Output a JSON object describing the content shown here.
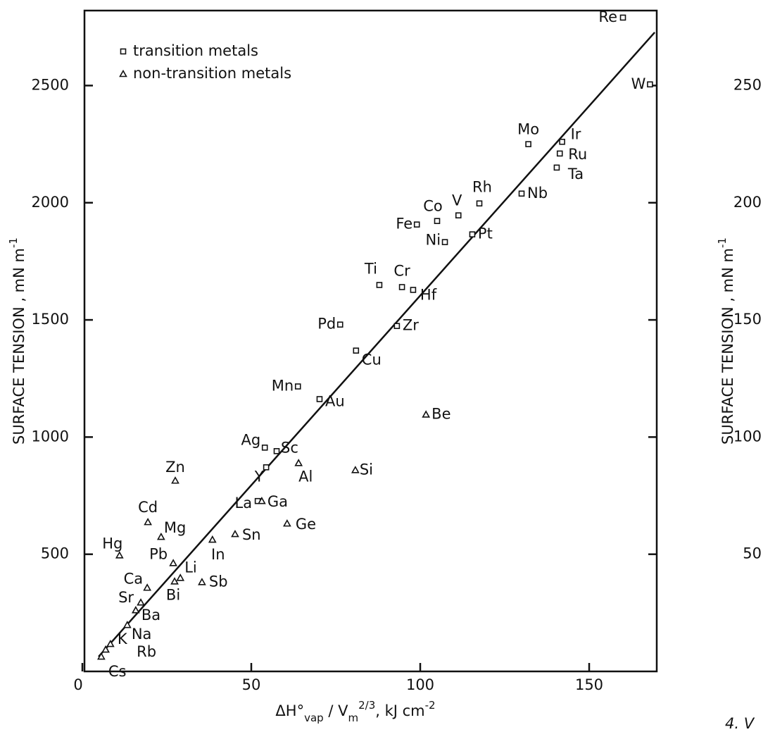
{
  "chart_data": {
    "type": "scatter",
    "x_label_parts": [
      "ΔH°",
      "vap",
      " / V",
      "m",
      "2/3",
      ", kJ cm",
      "-2"
    ],
    "y_label_parts": [
      "SURFACE TENSION , mN m",
      "-1"
    ],
    "y2_label_parts": [
      "SURFACE TENSION , mN m",
      "-1"
    ],
    "xlim": [
      0,
      170
    ],
    "ylim": [
      0,
      2820
    ],
    "y2lim": [
      0,
      282
    ],
    "xticks": [
      0,
      50,
      100,
      150
    ],
    "yticks": [
      500,
      1000,
      1500,
      2000,
      2500
    ],
    "y2ticks": [
      50,
      100,
      150,
      200,
      250
    ],
    "legend": "upper left",
    "series": [
      {
        "name": "transition metals",
        "marker": "square",
        "color": "#111111",
        "labels": [
          "Re",
          "W",
          "Mo",
          "Ir",
          "Ru",
          "Ta",
          "Nb",
          "Rh",
          "V",
          "Co",
          "Fe",
          "Ni",
          "Pt",
          "Ti",
          "Cr",
          "Hf",
          "Pd",
          "Zr",
          "Cu",
          "Mn",
          "Au",
          "Ag",
          "Sc",
          "Y",
          "La"
        ],
        "x": [
          160,
          168,
          132,
          142,
          141.3,
          140.4,
          130,
          117.5,
          111.3,
          105,
          99,
          107.3,
          115.4,
          87.9,
          94.6,
          97.9,
          76.3,
          93.1,
          81,
          63.8,
          70.2,
          54,
          57.5,
          54.4,
          51.9
        ],
        "values": [
          2790,
          2505,
          2250,
          2260,
          2210,
          2150,
          2039,
          1997,
          1946,
          1922,
          1907,
          1832,
          1865,
          1649,
          1640,
          1628,
          1480,
          1474,
          1369,
          1216,
          1162,
          955,
          940,
          871,
          727
        ]
      },
      {
        "name": "non-transition metals",
        "marker": "triangle",
        "color": "#111111",
        "labels": [
          "Be",
          "Si",
          "Al",
          "Zn",
          "Ga",
          "Ge",
          "Cd",
          "Mg",
          "Sn",
          "In",
          "Hg",
          "Pb",
          "Li",
          "Bi",
          "Sb",
          "Ca",
          "Sr",
          "Ba",
          "Na",
          "K",
          "Rb",
          "Cs"
        ],
        "x": [
          101.7,
          80.8,
          64,
          27.5,
          53.1,
          60.6,
          19.4,
          23.3,
          45.2,
          38.5,
          11,
          26.9,
          29,
          27.3,
          35.4,
          19.2,
          17.3,
          15.8,
          13.3,
          8.3,
          6.9,
          5.6
        ],
        "values": [
          1096,
          859,
          889,
          814,
          727,
          631,
          637,
          574,
          586,
          562,
          495,
          462,
          399,
          384,
          381,
          357,
          294,
          261,
          198,
          117,
          93,
          63
        ]
      }
    ],
    "trend_line": {
      "x": [
        4.8,
        169.4
      ],
      "y": [
        63,
        2727
      ]
    },
    "caption_fragment": "4. V"
  }
}
